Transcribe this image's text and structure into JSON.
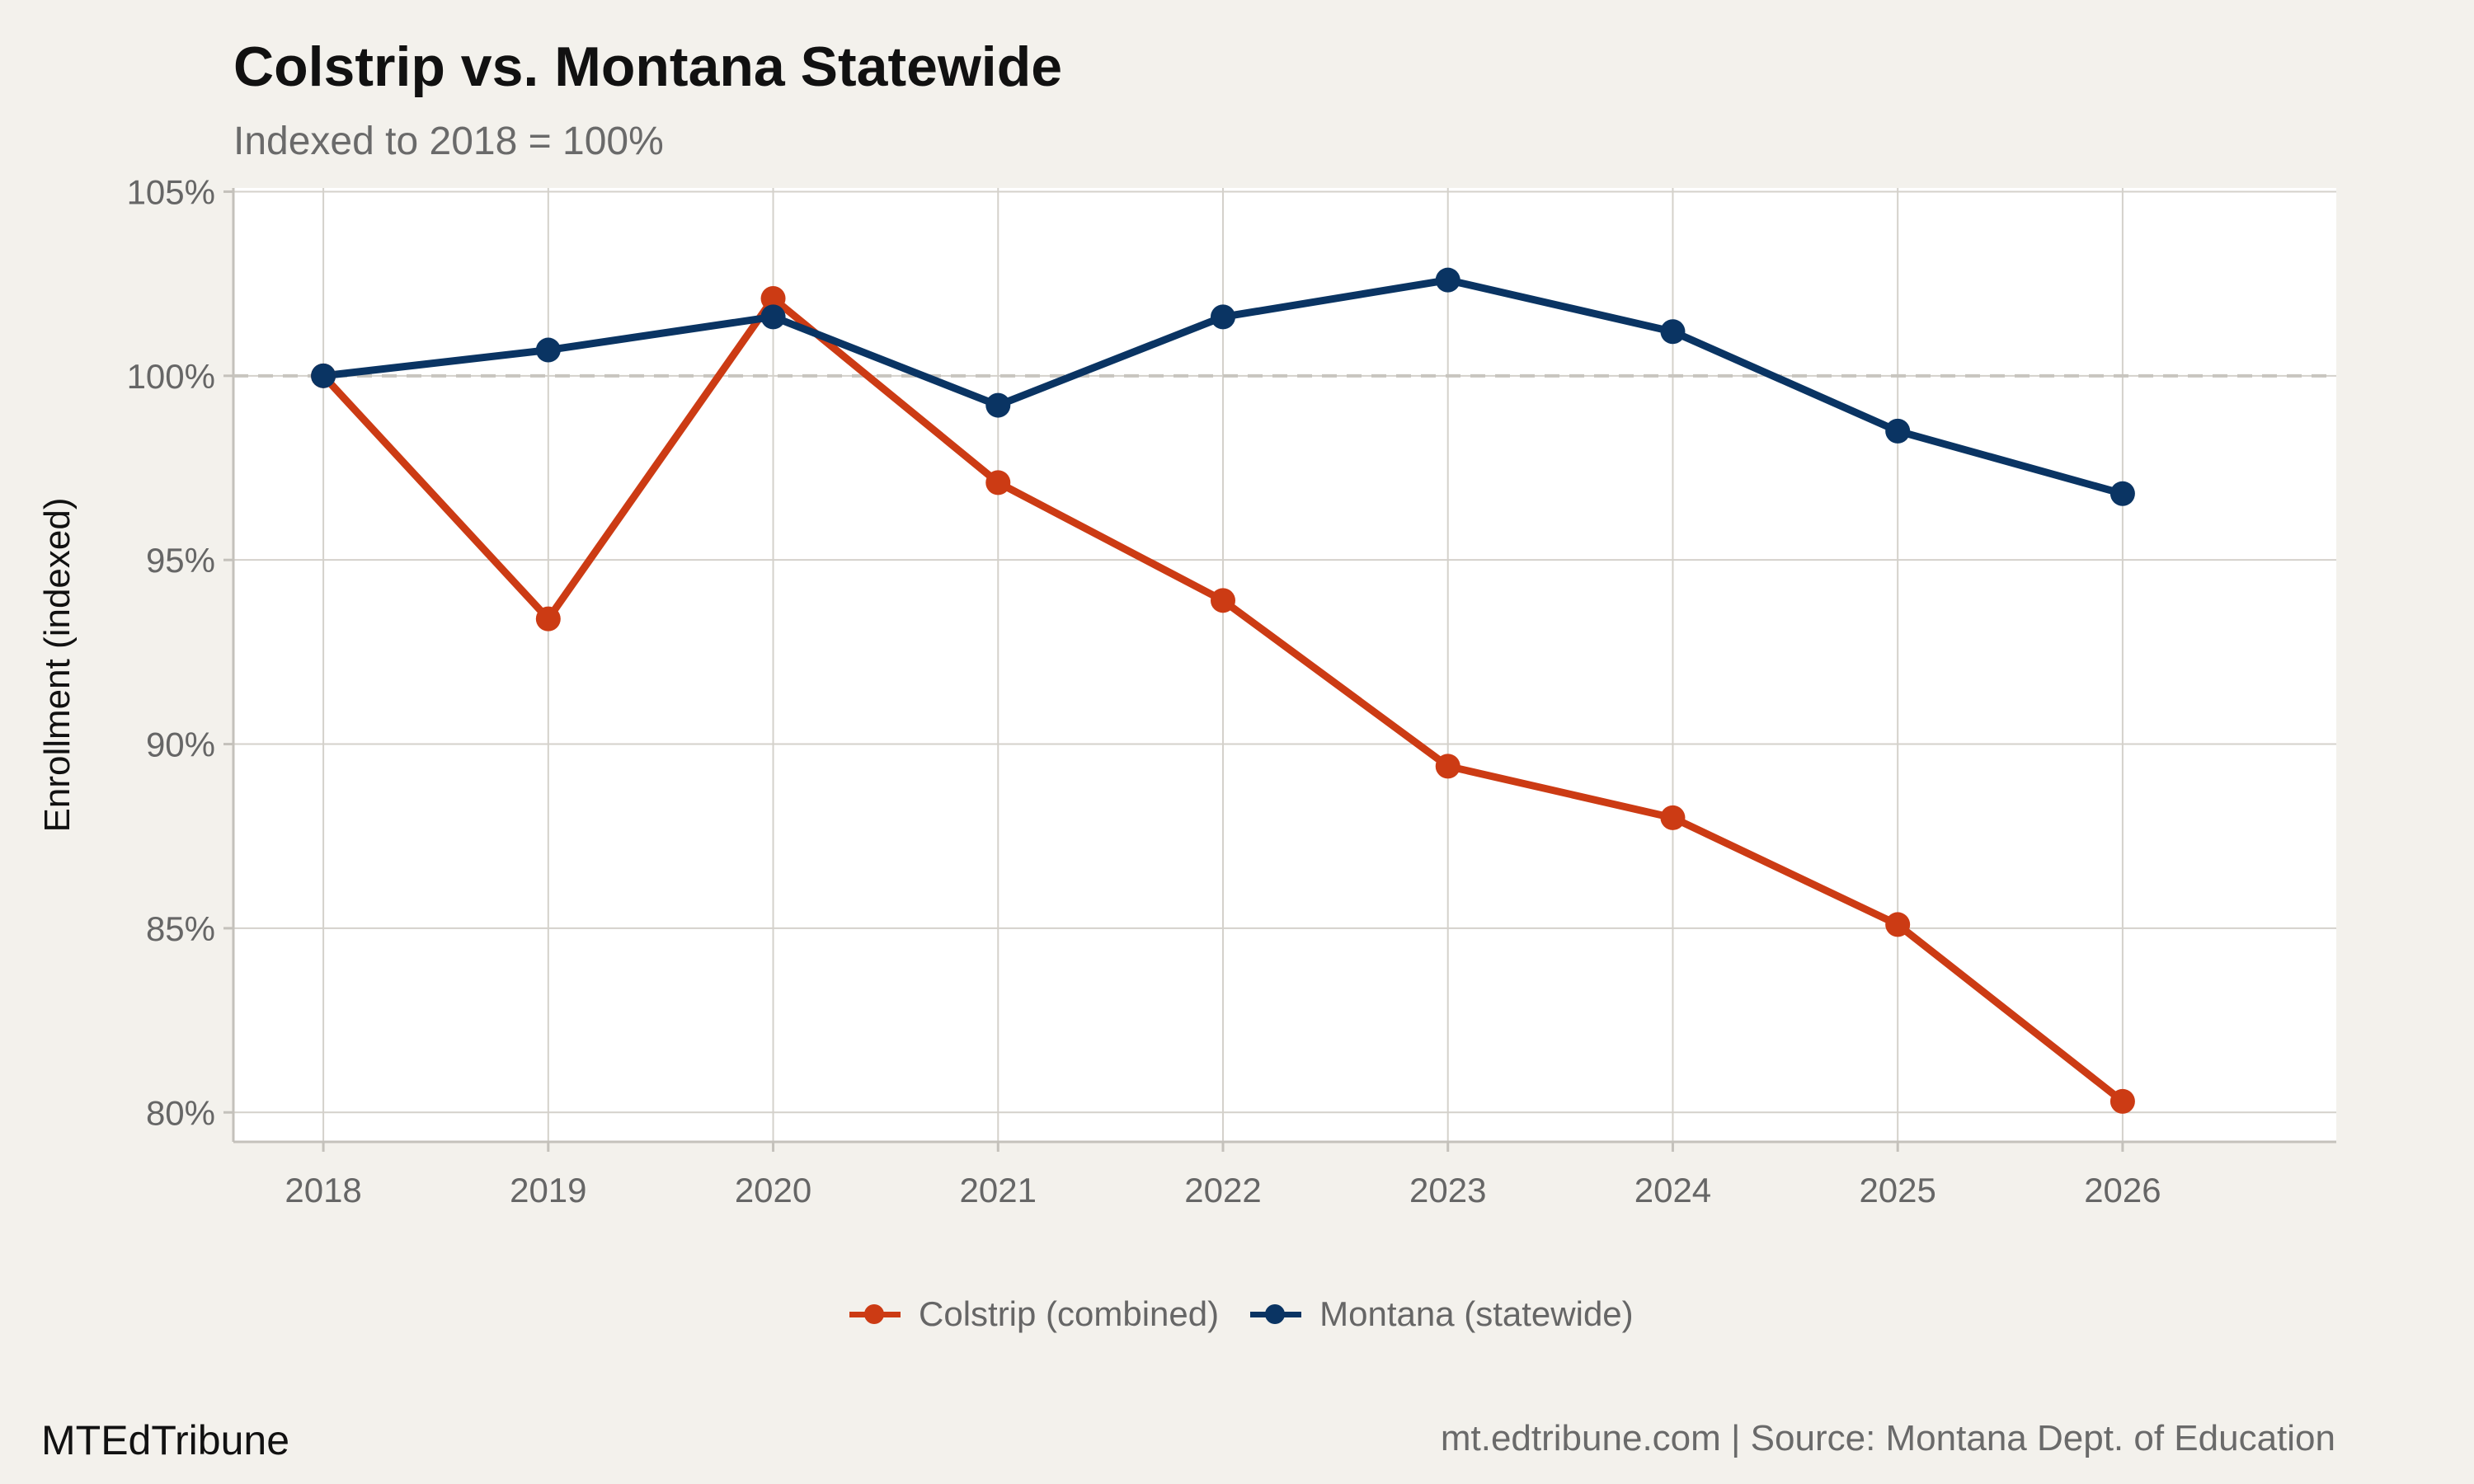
{
  "title": "Colstrip vs. Montana Statewide",
  "subtitle": "Indexed to 2018 = 100%",
  "footer": {
    "brand": "MTEdTribune",
    "source": "mt.edtribune.com | Source: Montana Dept. of Education"
  },
  "legend": {
    "items": [
      {
        "label": "Colstrip (combined)",
        "color": "#cc3b14"
      },
      {
        "label": "Montana (statewide)",
        "color": "#0a3463"
      }
    ]
  },
  "chart_data": {
    "type": "line",
    "title": "Colstrip vs. Montana Statewide",
    "subtitle": "Indexed to 2018 = 100%",
    "xlabel": "",
    "ylabel": "Enrollment (indexed)",
    "x": [
      2018,
      2019,
      2020,
      2021,
      2022,
      2023,
      2024,
      2025,
      2026
    ],
    "xlim": [
      2017.6,
      2026.95
    ],
    "ylim": [
      79.2,
      105.1
    ],
    "yticks": [
      80,
      85,
      90,
      95,
      100,
      105
    ],
    "ytick_labels": [
      "80%",
      "85%",
      "90%",
      "95%",
      "100%",
      "105%"
    ],
    "xtick_labels": [
      "2018",
      "2019",
      "2020",
      "2021",
      "2022",
      "2023",
      "2024",
      "2025",
      "2026"
    ],
    "reference_line": {
      "y": 100,
      "style": "dashed",
      "color": "#c8c5bf"
    },
    "grid": true,
    "legend_position": "bottom",
    "series": [
      {
        "name": "Colstrip (combined)",
        "color": "#cc3b14",
        "values": [
          100,
          93.4,
          102.1,
          97.1,
          93.9,
          89.4,
          88.0,
          85.1,
          80.3
        ]
      },
      {
        "name": "Montana (statewide)",
        "color": "#0a3463",
        "values": [
          100,
          100.7,
          101.6,
          99.2,
          101.6,
          102.6,
          101.2,
          98.5,
          96.8
        ]
      }
    ]
  }
}
